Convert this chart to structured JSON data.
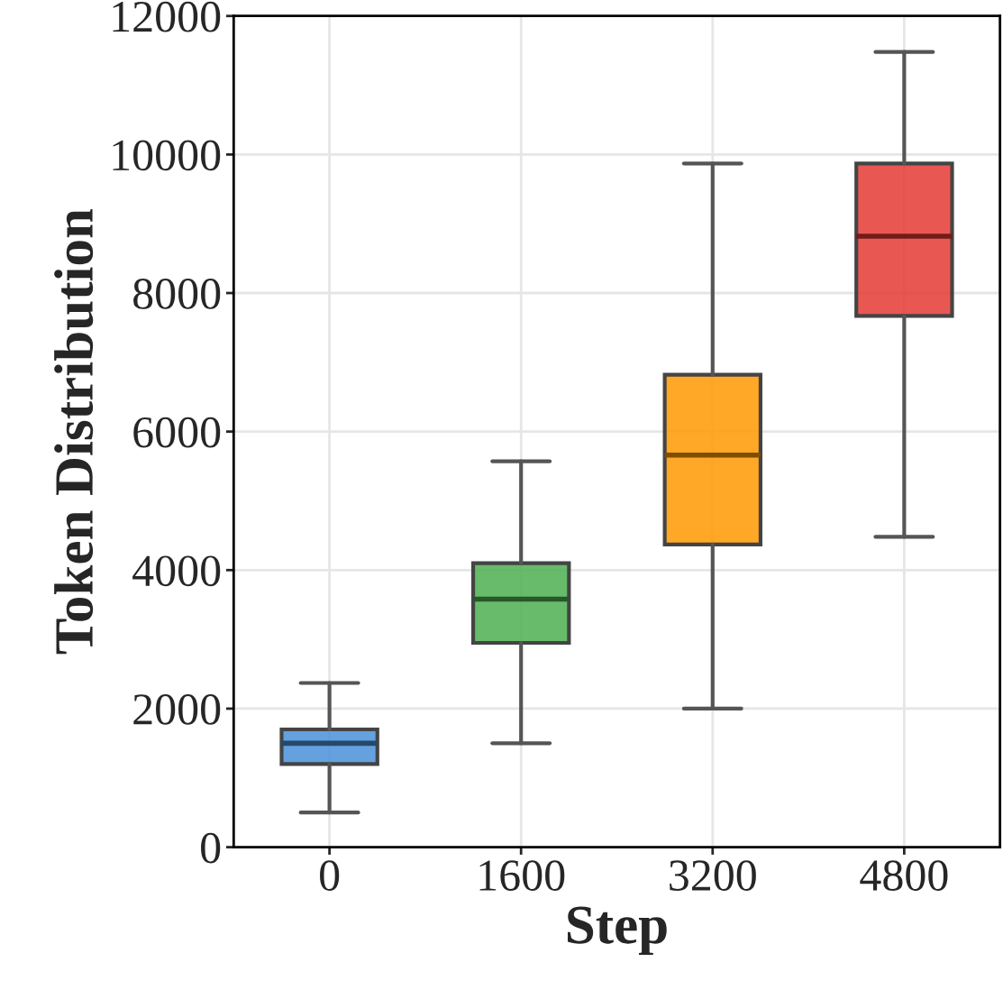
{
  "chart_data": {
    "type": "box",
    "xlabel": "Step",
    "ylabel": "Token Distribution",
    "categories": [
      "0",
      "1600",
      "3200",
      "4800"
    ],
    "colors": [
      "#4a90d9",
      "#4caf50",
      "#ff9800",
      "#e53935"
    ],
    "boxes": [
      {
        "low": 500,
        "q1": 1200,
        "median": 1500,
        "q3": 1700,
        "high": 2370
      },
      {
        "low": 1500,
        "q1": 2950,
        "median": 3580,
        "q3": 4100,
        "high": 5570
      },
      {
        "low": 2000,
        "q1": 4370,
        "median": 5660,
        "q3": 6820,
        "high": 9870
      },
      {
        "low": 4480,
        "q1": 7670,
        "median": 8820,
        "q3": 9870,
        "high": 11480
      }
    ],
    "ylim": [
      0,
      12000
    ],
    "yticks": [
      0,
      2000,
      4000,
      6000,
      8000,
      10000,
      12000
    ],
    "grid": true
  }
}
